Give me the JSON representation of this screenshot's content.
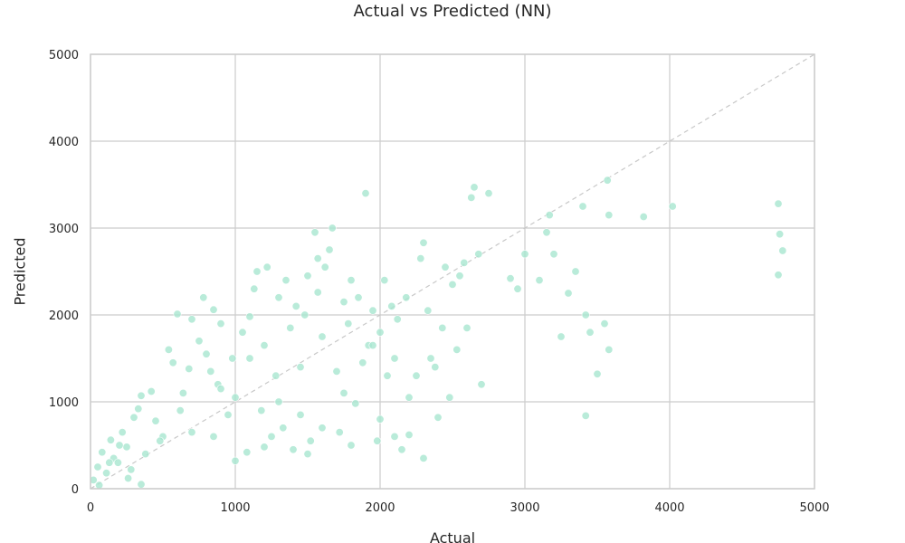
{
  "chart_data": {
    "type": "scatter",
    "title": "Actual vs Predicted (NN)",
    "xlabel": "Actual",
    "ylabel": "Predicted",
    "xlim": [
      0,
      5000
    ],
    "ylim": [
      0,
      5000
    ],
    "xticks": [
      "0",
      "1000",
      "2000",
      "3000",
      "4000",
      "5000"
    ],
    "yticks": [
      "0",
      "1000",
      "2000",
      "3000",
      "4000",
      "5000"
    ],
    "grid": true,
    "reference_line": {
      "style": "dashed",
      "from": [
        0,
        0
      ],
      "to": [
        5000,
        5000
      ]
    },
    "point_color": "#a8e6cf",
    "series": [
      {
        "points": [
          [
            20,
            100
          ],
          [
            50,
            250
          ],
          [
            80,
            420
          ],
          [
            110,
            180
          ],
          [
            140,
            560
          ],
          [
            160,
            350
          ],
          [
            190,
            300
          ],
          [
            220,
            650
          ],
          [
            250,
            480
          ],
          [
            280,
            220
          ],
          [
            300,
            820
          ],
          [
            330,
            920
          ],
          [
            350,
            1070
          ],
          [
            380,
            400
          ],
          [
            420,
            1120
          ],
          [
            450,
            780
          ],
          [
            500,
            600
          ],
          [
            540,
            1600
          ],
          [
            570,
            1450
          ],
          [
            600,
            2010
          ],
          [
            640,
            1100
          ],
          [
            680,
            1380
          ],
          [
            700,
            1950
          ],
          [
            750,
            1700
          ],
          [
            780,
            2200
          ],
          [
            800,
            1550
          ],
          [
            830,
            1350
          ],
          [
            850,
            2060
          ],
          [
            880,
            1200
          ],
          [
            900,
            1900
          ],
          [
            950,
            850
          ],
          [
            980,
            1500
          ],
          [
            1000,
            1050
          ],
          [
            1050,
            1800
          ],
          [
            1080,
            420
          ],
          [
            1100,
            1980
          ],
          [
            1130,
            2300
          ],
          [
            1150,
            2500
          ],
          [
            1180,
            900
          ],
          [
            1200,
            1650
          ],
          [
            1220,
            2550
          ],
          [
            1250,
            600
          ],
          [
            1280,
            1300
          ],
          [
            1300,
            2200
          ],
          [
            1330,
            700
          ],
          [
            1350,
            2400
          ],
          [
            1380,
            1850
          ],
          [
            1400,
            450
          ],
          [
            1420,
            2100
          ],
          [
            1450,
            1400
          ],
          [
            1480,
            2000
          ],
          [
            1500,
            2450
          ],
          [
            1520,
            550
          ],
          [
            1550,
            2950
          ],
          [
            1570,
            2650
          ],
          [
            1600,
            1750
          ],
          [
            1620,
            2550
          ],
          [
            1650,
            2750
          ],
          [
            1670,
            3000
          ],
          [
            1700,
            1350
          ],
          [
            1720,
            650
          ],
          [
            1750,
            2150
          ],
          [
            1780,
            1900
          ],
          [
            1800,
            2400
          ],
          [
            1830,
            980
          ],
          [
            1850,
            2200
          ],
          [
            1880,
            1450
          ],
          [
            1900,
            3400
          ],
          [
            1920,
            1650
          ],
          [
            1950,
            2050
          ],
          [
            1980,
            550
          ],
          [
            2000,
            1800
          ],
          [
            2030,
            2400
          ],
          [
            2050,
            1300
          ],
          [
            2080,
            2100
          ],
          [
            2100,
            600
          ],
          [
            2120,
            1950
          ],
          [
            2150,
            450
          ],
          [
            2180,
            2200
          ],
          [
            2200,
            1050
          ],
          [
            2250,
            1300
          ],
          [
            2280,
            2650
          ],
          [
            2300,
            2830
          ],
          [
            2330,
            2050
          ],
          [
            2350,
            1500
          ],
          [
            2380,
            1400
          ],
          [
            2400,
            820
          ],
          [
            2430,
            1850
          ],
          [
            2450,
            2550
          ],
          [
            2480,
            1050
          ],
          [
            2500,
            2350
          ],
          [
            2530,
            1600
          ],
          [
            2550,
            2450
          ],
          [
            2580,
            2600
          ],
          [
            2600,
            1850
          ],
          [
            2630,
            3350
          ],
          [
            2650,
            3470
          ],
          [
            2680,
            2700
          ],
          [
            2700,
            1200
          ],
          [
            2750,
            3400
          ],
          [
            2900,
            2420
          ],
          [
            2950,
            2300
          ],
          [
            3000,
            2700
          ],
          [
            3100,
            2400
          ],
          [
            3150,
            2950
          ],
          [
            3170,
            3150
          ],
          [
            3200,
            2700
          ],
          [
            3250,
            1750
          ],
          [
            3300,
            2250
          ],
          [
            3350,
            2500
          ],
          [
            3400,
            3250
          ],
          [
            3420,
            2000
          ],
          [
            3450,
            1800
          ],
          [
            3500,
            1320
          ],
          [
            3550,
            1900
          ],
          [
            3570,
            3550
          ],
          [
            3580,
            1600
          ],
          [
            3820,
            3130
          ],
          [
            4020,
            3250
          ],
          [
            4750,
            3280
          ],
          [
            4780,
            2740
          ],
          [
            4750,
            2460
          ],
          [
            4760,
            2930
          ],
          [
            3420,
            840
          ],
          [
            3580,
            3150
          ],
          [
            1570,
            2260
          ],
          [
            900,
            1150
          ],
          [
            1200,
            480
          ],
          [
            700,
            650
          ],
          [
            1600,
            700
          ],
          [
            2200,
            620
          ],
          [
            2300,
            350
          ],
          [
            2000,
            800
          ],
          [
            1100,
            1500
          ],
          [
            850,
            600
          ],
          [
            1750,
            1100
          ],
          [
            2100,
            1500
          ],
          [
            1950,
            1650
          ],
          [
            1300,
            1000
          ],
          [
            1450,
            850
          ],
          [
            620,
            900
          ],
          [
            480,
            550
          ],
          [
            260,
            120
          ],
          [
            130,
            300
          ],
          [
            60,
            40
          ],
          [
            350,
            50
          ],
          [
            200,
            500
          ],
          [
            1000,
            320
          ],
          [
            1500,
            400
          ],
          [
            1800,
            500
          ]
        ]
      }
    ]
  }
}
